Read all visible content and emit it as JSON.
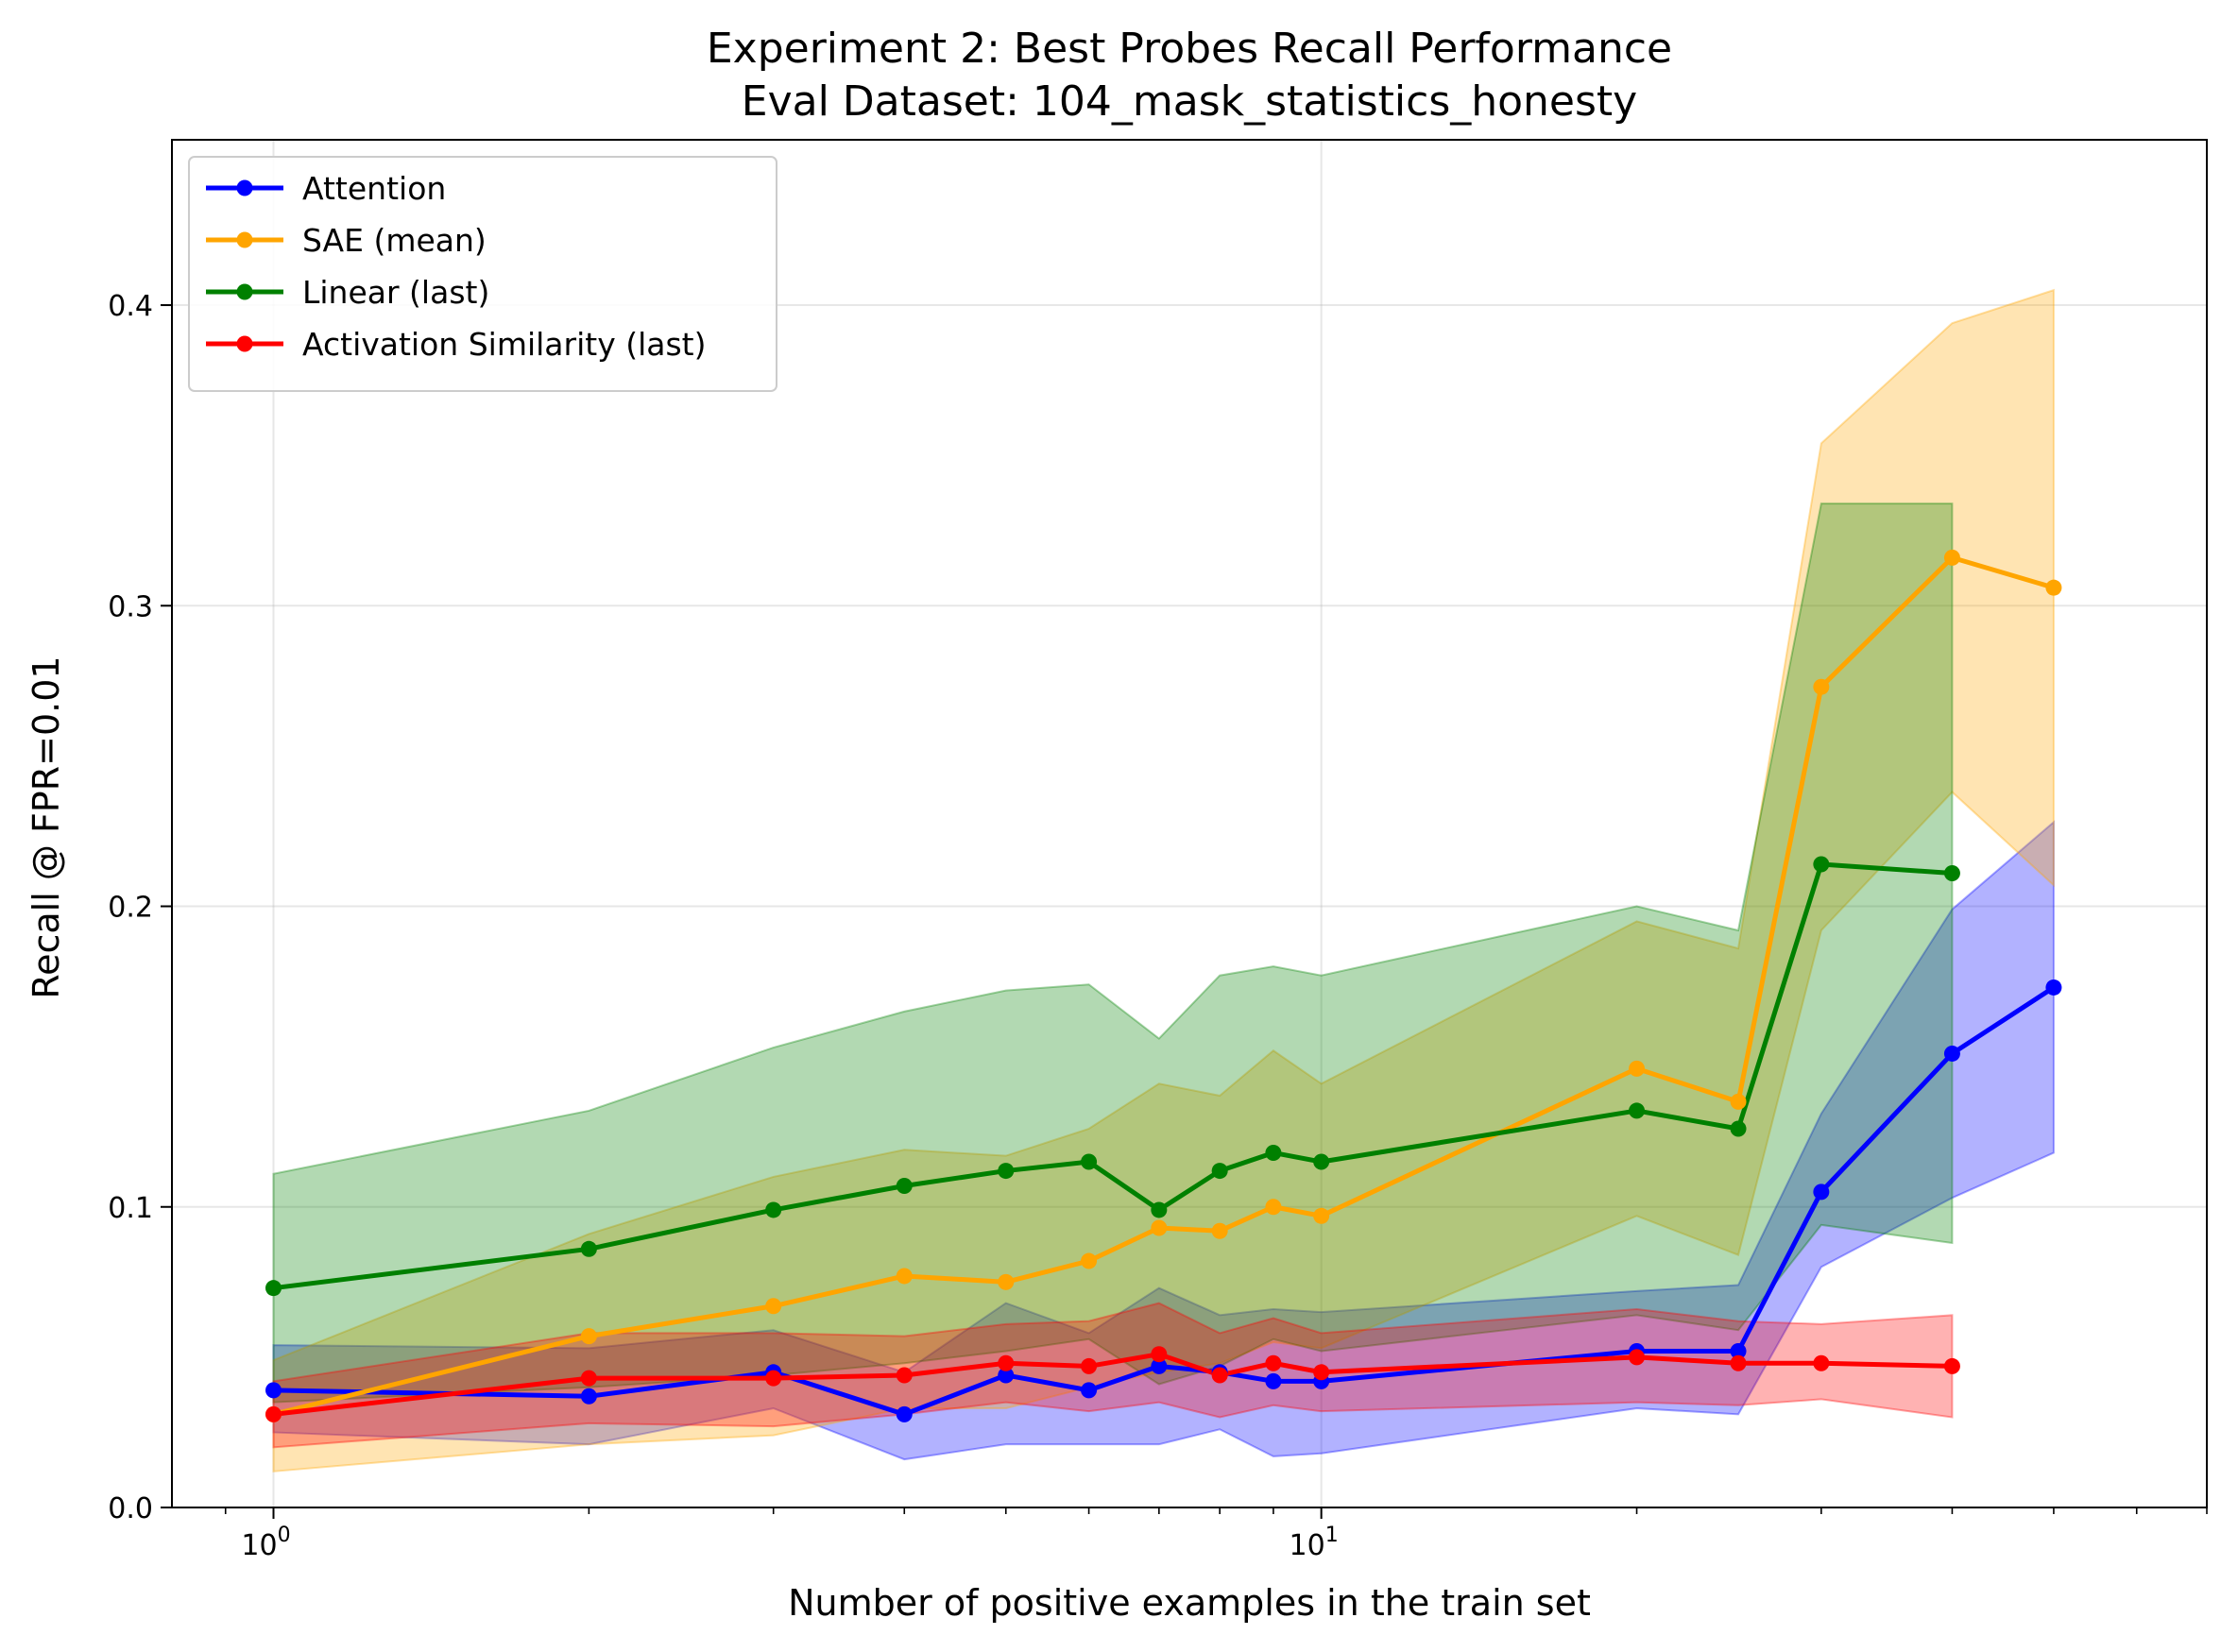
{
  "chart_data": {
    "type": "line",
    "title": "Experiment 2: Best Probes Recall Performance",
    "subtitle": "Eval Dataset: 104_mask_statistics_honesty",
    "xlabel": "Number of positive examples in the train set",
    "ylabel": "Recall @ FPR=0.01",
    "xscale": "log",
    "xlim": [
      0.8,
      70
    ],
    "ylim": [
      0.0,
      0.455
    ],
    "x_ticks": [
      {
        "value": 1,
        "base": "10",
        "exp": "0"
      },
      {
        "value": 10,
        "base": "10",
        "exp": "1"
      }
    ],
    "y_ticks": [
      {
        "value": 0.0,
        "label": "0.0"
      },
      {
        "value": 0.1,
        "label": "0.1"
      },
      {
        "value": 0.2,
        "label": "0.2"
      },
      {
        "value": 0.3,
        "label": "0.3"
      },
      {
        "value": 0.4,
        "label": "0.4"
      }
    ],
    "grid": true,
    "legend_position": "top-left",
    "series": [
      {
        "name": "Attention",
        "color": "#0000ff",
        "x": [
          1,
          2,
          3,
          4,
          5,
          6,
          7,
          8,
          9,
          10,
          20,
          25,
          30,
          40,
          50
        ],
        "y": [
          0.039,
          0.037,
          0.045,
          0.031,
          0.044,
          0.039,
          0.047,
          0.045,
          0.042,
          0.042,
          0.052,
          0.052,
          0.105,
          0.151,
          0.173
        ],
        "lower": [
          0.025,
          0.021,
          0.033,
          0.016,
          0.021,
          0.021,
          0.021,
          0.026,
          0.017,
          0.018,
          0.033,
          0.031,
          0.08,
          0.103,
          0.118
        ],
        "upper": [
          0.054,
          0.053,
          0.059,
          0.045,
          0.068,
          0.058,
          0.073,
          0.064,
          0.066,
          0.065,
          0.072,
          0.074,
          0.131,
          0.199,
          0.228
        ]
      },
      {
        "name": "SAE (mean)",
        "color": "#ffa500",
        "x": [
          1,
          2,
          3,
          4,
          5,
          6,
          7,
          8,
          9,
          10,
          20,
          25,
          30,
          40,
          50
        ],
        "y": [
          0.031,
          0.057,
          0.067,
          0.077,
          0.075,
          0.082,
          0.093,
          0.092,
          0.1,
          0.097,
          0.146,
          0.135,
          0.273,
          0.316,
          0.306
        ],
        "lower": [
          0.012,
          0.021,
          0.024,
          0.033,
          0.033,
          0.04,
          0.045,
          0.048,
          0.055,
          0.053,
          0.097,
          0.084,
          0.192,
          0.238,
          0.207
        ],
        "upper": [
          0.049,
          0.091,
          0.11,
          0.119,
          0.117,
          0.126,
          0.141,
          0.137,
          0.152,
          0.141,
          0.195,
          0.186,
          0.354,
          0.394,
          0.405
        ]
      },
      {
        "name": "Linear (last)",
        "color": "#008000",
        "x": [
          1,
          2,
          3,
          4,
          5,
          6,
          7,
          8,
          9,
          10,
          20,
          25,
          30,
          40
        ],
        "y": [
          0.073,
          0.086,
          0.099,
          0.107,
          0.112,
          0.115,
          0.099,
          0.112,
          0.118,
          0.115,
          0.132,
          0.126,
          0.214,
          0.211
        ],
        "lower": [
          0.035,
          0.04,
          0.044,
          0.048,
          0.052,
          0.056,
          0.041,
          0.047,
          0.056,
          0.052,
          0.064,
          0.059,
          0.094,
          0.088
        ],
        "upper": [
          0.111,
          0.132,
          0.153,
          0.165,
          0.172,
          0.174,
          0.156,
          0.177,
          0.18,
          0.177,
          0.2,
          0.192,
          0.334,
          0.334
        ]
      },
      {
        "name": "Activation Similarity (last)",
        "color": "#ff0000",
        "x": [
          1,
          2,
          3,
          4,
          5,
          6,
          7,
          8,
          9,
          10,
          20,
          25,
          30,
          40
        ],
        "y": [
          0.031,
          0.043,
          0.043,
          0.044,
          0.048,
          0.047,
          0.051,
          0.044,
          0.048,
          0.045,
          0.05,
          0.048,
          0.048,
          0.047
        ],
        "lower": [
          0.02,
          0.028,
          0.027,
          0.031,
          0.035,
          0.032,
          0.035,
          0.03,
          0.034,
          0.032,
          0.035,
          0.034,
          0.036,
          0.03
        ],
        "upper": [
          0.042,
          0.058,
          0.058,
          0.057,
          0.061,
          0.062,
          0.068,
          0.058,
          0.063,
          0.058,
          0.066,
          0.062,
          0.061,
          0.064
        ]
      }
    ]
  }
}
